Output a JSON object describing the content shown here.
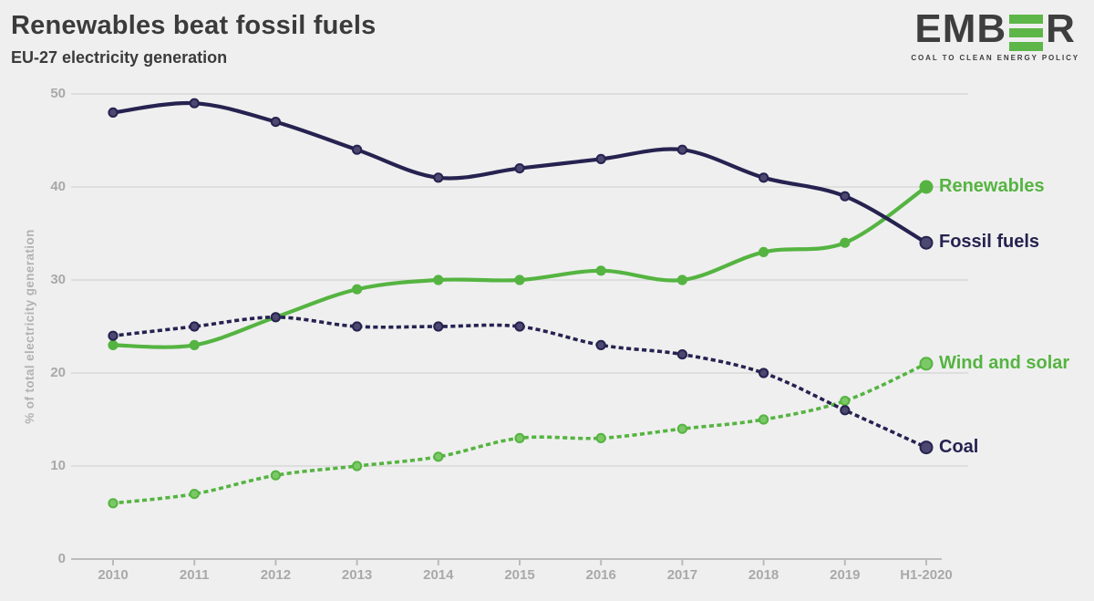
{
  "header": {
    "title": "Renewables beat fossil fuels",
    "subtitle": "EU-27 electricity generation"
  },
  "logo": {
    "word_start": "EMB",
    "word_end": "R",
    "tagline": "COAL TO CLEAN ENERGY POLICY",
    "bar_color": "#5cb648"
  },
  "chart_data": {
    "type": "line",
    "title": "Renewables beat fossil fuels",
    "subtitle": "EU-27 electricity generation",
    "xlabel": "",
    "ylabel": "% of total electricity generation",
    "ylim": [
      0,
      50
    ],
    "yticks": [
      0,
      10,
      20,
      30,
      40,
      50
    ],
    "grid": true,
    "legend_position": "right-end-of-line",
    "categories": [
      "2010",
      "2011",
      "2012",
      "2013",
      "2014",
      "2015",
      "2016",
      "2017",
      "2018",
      "2019",
      "H1-2020"
    ],
    "series": [
      {
        "name": "Fossil fuels",
        "style": "solid",
        "color": "#262250",
        "marker_fill": "#4c4870",
        "values": [
          48,
          49,
          47,
          44,
          41,
          42,
          43,
          44,
          41,
          39,
          34
        ]
      },
      {
        "name": "Renewables",
        "style": "solid",
        "color": "#55b441",
        "marker_fill": "#55b441",
        "values": [
          23,
          23,
          26,
          29,
          30,
          30,
          31,
          30,
          33,
          34,
          40
        ]
      },
      {
        "name": "Coal",
        "style": "dotted",
        "color": "#262250",
        "marker_fill": "#4c4870",
        "values": [
          24,
          25,
          26,
          25,
          25,
          25,
          23,
          22,
          20,
          16,
          12
        ]
      },
      {
        "name": "Wind and solar",
        "style": "dotted",
        "color": "#55b441",
        "marker_fill": "#7cc866",
        "values": [
          6,
          7,
          9,
          10,
          11,
          13,
          13,
          14,
          15,
          17,
          21
        ]
      }
    ]
  },
  "style_colors": {
    "background": "#efefef",
    "gridline": "#d9d9d9",
    "axis_line": "#bcbcbc",
    "tick_text": "#a9a9a9",
    "title_text": "#3b3b3b"
  }
}
